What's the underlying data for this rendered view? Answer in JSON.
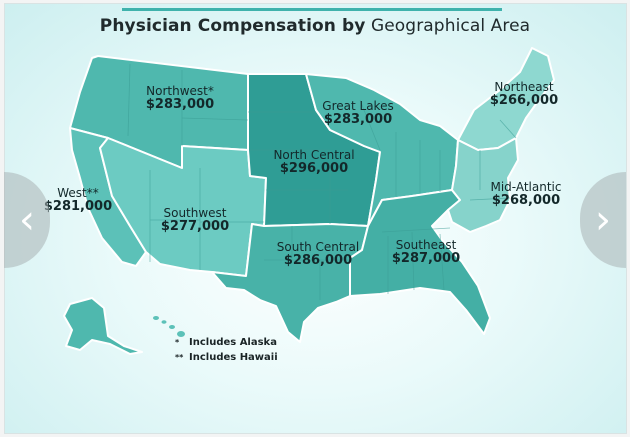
{
  "title": {
    "bold": "Physician Compensation by",
    "rest": "Geographical Area"
  },
  "regions": [
    {
      "id": "northwest",
      "name": "Northwest*",
      "value": "$283,000",
      "color": "#4fb8ae"
    },
    {
      "id": "west",
      "name": "West**",
      "value": "$281,000",
      "color": "#5cc1b8"
    },
    {
      "id": "southwest",
      "name": "Southwest",
      "value": "$277,000",
      "color": "#6ccbc2"
    },
    {
      "id": "north-central",
      "name": "North Central",
      "value": "$296,000",
      "color": "#2f9d95"
    },
    {
      "id": "south-central",
      "name": "South Central",
      "value": "$286,000",
      "color": "#48b2a8"
    },
    {
      "id": "great-lakes",
      "name": "Great Lakes",
      "value": "$283,000",
      "color": "#4fb8ae"
    },
    {
      "id": "southeast",
      "name": "Southeast",
      "value": "$287,000",
      "color": "#44afa5"
    },
    {
      "id": "northeast",
      "name": "Northeast",
      "value": "$266,000",
      "color": "#8ed8d0"
    },
    {
      "id": "mid-atlantic",
      "name": "Mid-Atlantic",
      "value": "$268,000",
      "color": "#86d3cb"
    }
  ],
  "legend": [
    {
      "mark": "*",
      "text": "Includes Alaska"
    },
    {
      "mark": "**",
      "text": "Includes Hawaii"
    }
  ],
  "nav": {
    "prev": "‹",
    "next": "›"
  }
}
